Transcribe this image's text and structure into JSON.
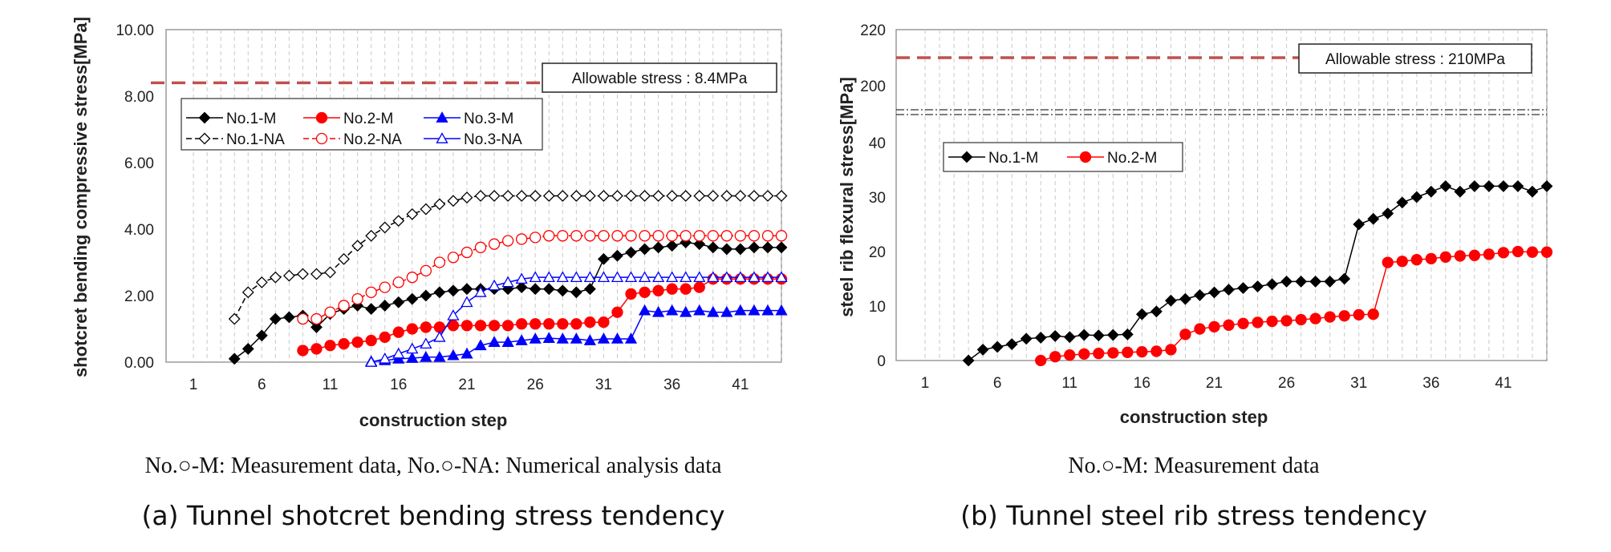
{
  "chart_data": [
    {
      "type": "line",
      "xlabel": "construction step",
      "ylabel": "shotcret bending compressive stress[MPa]",
      "ylim": [
        0,
        10
      ],
      "yticks": [
        "0.00",
        "2.00",
        "4.00",
        "6.00",
        "8.00",
        "10.00"
      ],
      "xlim": [
        -1,
        44
      ],
      "xticks": [
        "1",
        "6",
        "11",
        "16",
        "21",
        "26",
        "31",
        "36",
        "41"
      ],
      "grid": "vertical dashed",
      "legend_position": "top-left",
      "allowable_stress": {
        "value": 8.4,
        "label": "Allowable stress : 8.4MPa",
        "color": "#c0504d"
      },
      "note": "No.○-M: Measurement data, No.○-NA: Numerical analysis data",
      "caption": "(a) Tunnel shotcret bending stress tendency",
      "series": [
        {
          "name": "No.1-M",
          "color": "#000000",
          "marker": "diamond",
          "filled": true,
          "dash": "solid",
          "x": [
            4,
            5,
            6,
            7,
            8,
            9,
            10,
            11,
            12,
            13,
            14,
            15,
            16,
            17,
            18,
            19,
            20,
            21,
            22,
            23,
            24,
            25,
            26,
            27,
            28,
            29,
            30,
            31,
            32,
            33,
            34,
            35,
            36,
            37,
            38,
            39,
            40,
            41,
            42,
            43,
            44
          ],
          "values": [
            0.1,
            0.4,
            0.8,
            1.3,
            1.35,
            1.4,
            1.05,
            1.45,
            1.6,
            1.7,
            1.6,
            1.7,
            1.8,
            1.9,
            2.0,
            2.1,
            2.15,
            2.2,
            2.2,
            2.2,
            2.2,
            2.25,
            2.2,
            2.2,
            2.15,
            2.1,
            2.2,
            3.1,
            3.2,
            3.3,
            3.4,
            3.45,
            3.5,
            3.6,
            3.55,
            3.45,
            3.4,
            3.4,
            3.45,
            3.45,
            3.45
          ]
        },
        {
          "name": "No.2-M",
          "color": "#ff0000",
          "marker": "circle",
          "filled": true,
          "dash": "solid",
          "x": [
            9,
            10,
            11,
            12,
            13,
            14,
            15,
            16,
            17,
            18,
            19,
            20,
            21,
            22,
            23,
            24,
            25,
            26,
            27,
            28,
            29,
            30,
            31,
            32,
            33,
            34,
            35,
            36,
            37,
            38,
            39,
            40,
            41,
            42,
            43,
            44
          ],
          "values": [
            0.35,
            0.4,
            0.5,
            0.55,
            0.6,
            0.65,
            0.75,
            0.9,
            1.0,
            1.05,
            1.05,
            1.1,
            1.1,
            1.1,
            1.1,
            1.1,
            1.15,
            1.15,
            1.15,
            1.15,
            1.15,
            1.2,
            1.2,
            1.5,
            2.05,
            2.1,
            2.15,
            2.2,
            2.2,
            2.25,
            2.5,
            2.5,
            2.5,
            2.5,
            2.5,
            2.5
          ]
        },
        {
          "name": "No.3-M",
          "color": "#0000ff",
          "marker": "triangle",
          "filled": true,
          "dash": "solid",
          "x": [
            14,
            15,
            16,
            17,
            18,
            19,
            20,
            21,
            22,
            23,
            24,
            25,
            26,
            27,
            28,
            29,
            30,
            31,
            32,
            33,
            34,
            35,
            36,
            37,
            38,
            39,
            40,
            41,
            42,
            43,
            44
          ],
          "values": [
            0.02,
            0.05,
            0.1,
            0.12,
            0.15,
            0.15,
            0.2,
            0.25,
            0.5,
            0.6,
            0.6,
            0.65,
            0.7,
            0.72,
            0.7,
            0.7,
            0.65,
            0.7,
            0.7,
            0.7,
            1.55,
            1.5,
            1.55,
            1.5,
            1.55,
            1.5,
            1.5,
            1.55,
            1.55,
            1.55,
            1.55
          ]
        },
        {
          "name": "No.1-NA",
          "color": "#000000",
          "marker": "diamond",
          "filled": false,
          "dash": "dash",
          "x": [
            4,
            5,
            6,
            7,
            8,
            9,
            10,
            11,
            12,
            13,
            14,
            15,
            16,
            17,
            18,
            19,
            20,
            21,
            22,
            23,
            24,
            25,
            26,
            27,
            28,
            29,
            30,
            31,
            32,
            33,
            34,
            35,
            36,
            37,
            38,
            39,
            40,
            41,
            42,
            43,
            44
          ],
          "values": [
            1.3,
            2.1,
            2.4,
            2.55,
            2.6,
            2.65,
            2.65,
            2.7,
            3.1,
            3.5,
            3.8,
            4.05,
            4.25,
            4.45,
            4.6,
            4.75,
            4.85,
            4.95,
            5.0,
            5.0,
            5.0,
            5.0,
            5.0,
            5.0,
            5.0,
            5.0,
            5.0,
            5.0,
            5.0,
            5.0,
            5.0,
            5.0,
            5.0,
            5.0,
            5.0,
            5.0,
            5.0,
            5.0,
            5.0,
            5.0,
            5.0
          ]
        },
        {
          "name": "No.2-NA",
          "color": "#ff0000",
          "marker": "circle",
          "filled": false,
          "dash": "dash",
          "x": [
            9,
            10,
            11,
            12,
            13,
            14,
            15,
            16,
            17,
            18,
            19,
            20,
            21,
            22,
            23,
            24,
            25,
            26,
            27,
            28,
            29,
            30,
            31,
            32,
            33,
            34,
            35,
            36,
            37,
            38,
            39,
            40,
            41,
            42,
            43,
            44
          ],
          "values": [
            1.3,
            1.3,
            1.5,
            1.7,
            1.9,
            2.1,
            2.25,
            2.4,
            2.55,
            2.75,
            3.0,
            3.15,
            3.3,
            3.45,
            3.55,
            3.65,
            3.7,
            3.75,
            3.8,
            3.8,
            3.8,
            3.8,
            3.8,
            3.8,
            3.8,
            3.8,
            3.8,
            3.8,
            3.8,
            3.8,
            3.8,
            3.8,
            3.8,
            3.8,
            3.8,
            3.8
          ]
        },
        {
          "name": "No.3-NA",
          "color": "#0000ff",
          "marker": "triangle",
          "filled": false,
          "dash": "solid",
          "x": [
            14,
            15,
            16,
            17,
            18,
            19,
            20,
            21,
            22,
            23,
            24,
            25,
            26,
            27,
            28,
            29,
            30,
            31,
            32,
            33,
            34,
            35,
            36,
            37,
            38,
            39,
            40,
            41,
            42,
            43,
            44
          ],
          "values": [
            0.0,
            0.1,
            0.25,
            0.4,
            0.55,
            0.75,
            1.4,
            1.8,
            2.1,
            2.3,
            2.4,
            2.5,
            2.55,
            2.55,
            2.55,
            2.55,
            2.55,
            2.55,
            2.55,
            2.55,
            2.55,
            2.55,
            2.55,
            2.55,
            2.55,
            2.55,
            2.55,
            2.55,
            2.55,
            2.55,
            2.55
          ]
        }
      ]
    },
    {
      "type": "line",
      "xlabel": "construction step",
      "ylabel": "steel rib flexural stress[MPa]",
      "ylim": [
        0,
        220
      ],
      "yticks": [
        "0",
        "10",
        "20",
        "30",
        "40",
        "200",
        "220"
      ],
      "axis_break": "between 45 and 190",
      "xlim": [
        -1,
        44
      ],
      "xticks": [
        "1",
        "6",
        "11",
        "16",
        "21",
        "26",
        "31",
        "36",
        "41"
      ],
      "grid": "vertical dashed",
      "legend_position": "top-left",
      "allowable_stress": {
        "value": 210,
        "label": "Allowable stress : 210MPa",
        "color": "#c0504d"
      },
      "note": "No.○-M: Measurement data",
      "caption": "(b) Tunnel steel rib stress tendency",
      "series": [
        {
          "name": "No.1-M",
          "color": "#000000",
          "marker": "diamond",
          "filled": true,
          "dash": "solid",
          "x": [
            4,
            5,
            6,
            7,
            8,
            9,
            10,
            11,
            12,
            13,
            14,
            15,
            16,
            17,
            18,
            19,
            20,
            21,
            22,
            23,
            24,
            25,
            26,
            27,
            28,
            29,
            30,
            31,
            32,
            33,
            34,
            35,
            36,
            37,
            38,
            39,
            40,
            41,
            42,
            43,
            44
          ],
          "values": [
            0,
            2,
            2.5,
            3,
            4,
            4.2,
            4.5,
            4.3,
            4.7,
            4.6,
            4.7,
            4.8,
            8.5,
            9,
            11,
            11.3,
            12,
            12.5,
            13,
            13.3,
            13.6,
            14,
            14.5,
            14.5,
            14.5,
            14.5,
            15,
            25,
            26,
            27,
            29,
            30,
            31,
            32,
            31,
            32,
            32,
            32,
            32,
            31,
            32
          ]
        },
        {
          "name": "No.2-M",
          "color": "#ff0000",
          "marker": "circle",
          "filled": true,
          "dash": "solid",
          "x": [
            9,
            10,
            11,
            12,
            13,
            14,
            15,
            16,
            17,
            18,
            19,
            20,
            21,
            22,
            23,
            24,
            25,
            26,
            27,
            28,
            29,
            30,
            31,
            32,
            33,
            34,
            35,
            36,
            37,
            38,
            39,
            40,
            41,
            42,
            43,
            44
          ],
          "values": [
            0,
            0.7,
            1,
            1.2,
            1.3,
            1.4,
            1.5,
            1.6,
            1.7,
            2,
            4.8,
            5.8,
            6.2,
            6.5,
            6.8,
            7,
            7.2,
            7.3,
            7.5,
            7.7,
            8,
            8.2,
            8.4,
            8.5,
            18,
            18.2,
            18.5,
            18.7,
            19,
            19.2,
            19.3,
            19.5,
            19.8,
            20,
            19.9,
            19.9
          ]
        }
      ]
    }
  ]
}
